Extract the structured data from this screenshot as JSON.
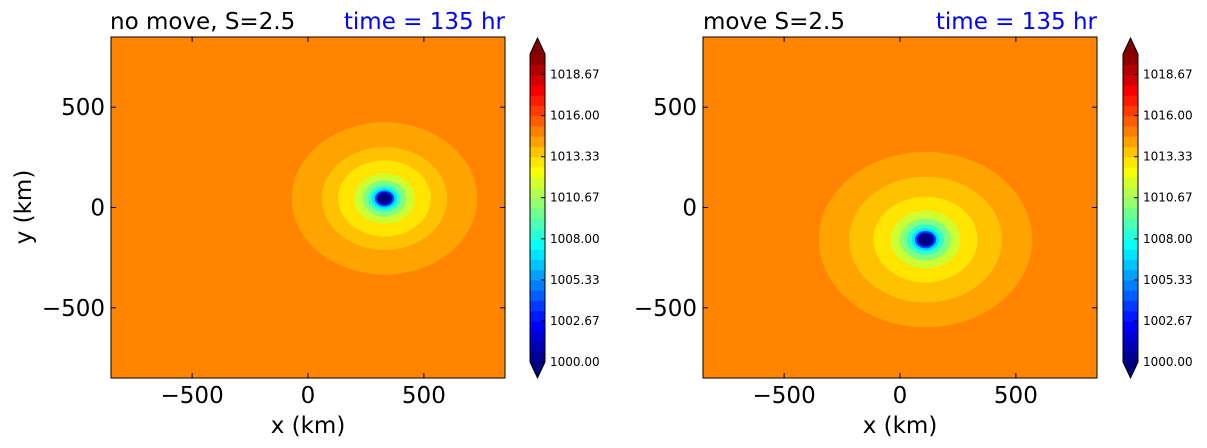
{
  "chart_data": [
    {
      "type": "heatmap",
      "title": "no move, S=2.5",
      "time_label": "time = 135 hr",
      "xlabel": "x (km)",
      "ylabel": "y (km)",
      "xlim": [
        -850,
        850
      ],
      "ylim": [
        -850,
        850
      ],
      "xticks": [
        -500,
        0,
        500
      ],
      "yticks": [
        -500,
        0,
        500
      ],
      "x_tick_labels": [
        "−500",
        "0",
        "500"
      ],
      "y_tick_labels": [
        "−500",
        "0",
        "500"
      ],
      "center": [
        330,
        45
      ],
      "background_pressure": 1014.9,
      "colorbar": {
        "vmin": 1000.0,
        "vmax": 1020.0,
        "ticks": [
          1000.0,
          1002.67,
          1005.33,
          1008.0,
          1010.67,
          1013.33,
          1016.0,
          1018.67
        ],
        "tick_labels": [
          "1000.00",
          "1002.67",
          "1005.33",
          "1008.00",
          "1010.67",
          "1013.33",
          "1016.00",
          "1018.67"
        ],
        "extend": "both",
        "colormap": "jet"
      },
      "contours": [
        {
          "level": 1014.3,
          "radius": 400
        },
        {
          "level": 1013.7,
          "radius": 270
        },
        {
          "level": 1013.0,
          "radius": 200
        },
        {
          "level": 1011.5,
          "radius": 130
        },
        {
          "level": 1010.0,
          "radius": 95
        },
        {
          "level": 1008.5,
          "radius": 70
        },
        {
          "level": 1007.0,
          "radius": 55
        },
        {
          "level": 1004.0,
          "radius": 42
        },
        {
          "level": 1001.5,
          "radius": 34
        },
        {
          "level": 1000.0,
          "radius": 26
        }
      ]
    },
    {
      "type": "heatmap",
      "title": "move S=2.5",
      "time_label": "time = 135 hr",
      "xlabel": "x (km)",
      "ylabel": "",
      "xlim": [
        -850,
        850
      ],
      "ylim": [
        -850,
        850
      ],
      "xticks": [
        -500,
        0,
        500
      ],
      "yticks": [
        -500,
        0,
        500
      ],
      "x_tick_labels": [
        "−500",
        "0",
        "500"
      ],
      "y_tick_labels": [
        "−500",
        "0",
        "500"
      ],
      "center": [
        110,
        -160
      ],
      "background_pressure": 1014.9,
      "colorbar": {
        "vmin": 1000.0,
        "vmax": 1020.0,
        "ticks": [
          1000.0,
          1002.67,
          1005.33,
          1008.0,
          1010.67,
          1013.33,
          1016.0,
          1018.67
        ],
        "tick_labels": [
          "1000.00",
          "1002.67",
          "1005.33",
          "1008.00",
          "1010.67",
          "1013.33",
          "1016.00",
          "1018.67"
        ],
        "extend": "both",
        "colormap": "jet"
      },
      "contours": [
        {
          "level": 1014.3,
          "radius": 460
        },
        {
          "level": 1013.7,
          "radius": 330
        },
        {
          "level": 1013.0,
          "radius": 225
        },
        {
          "level": 1011.5,
          "radius": 150
        },
        {
          "level": 1010.0,
          "radius": 110
        },
        {
          "level": 1008.5,
          "radius": 80
        },
        {
          "level": 1007.0,
          "radius": 60
        },
        {
          "level": 1004.0,
          "radius": 46
        },
        {
          "level": 1001.5,
          "radius": 37
        },
        {
          "level": 1000.0,
          "radius": 28
        }
      ]
    }
  ],
  "colors": {
    "time_label": "#0000ff",
    "axis": "#000000"
  }
}
